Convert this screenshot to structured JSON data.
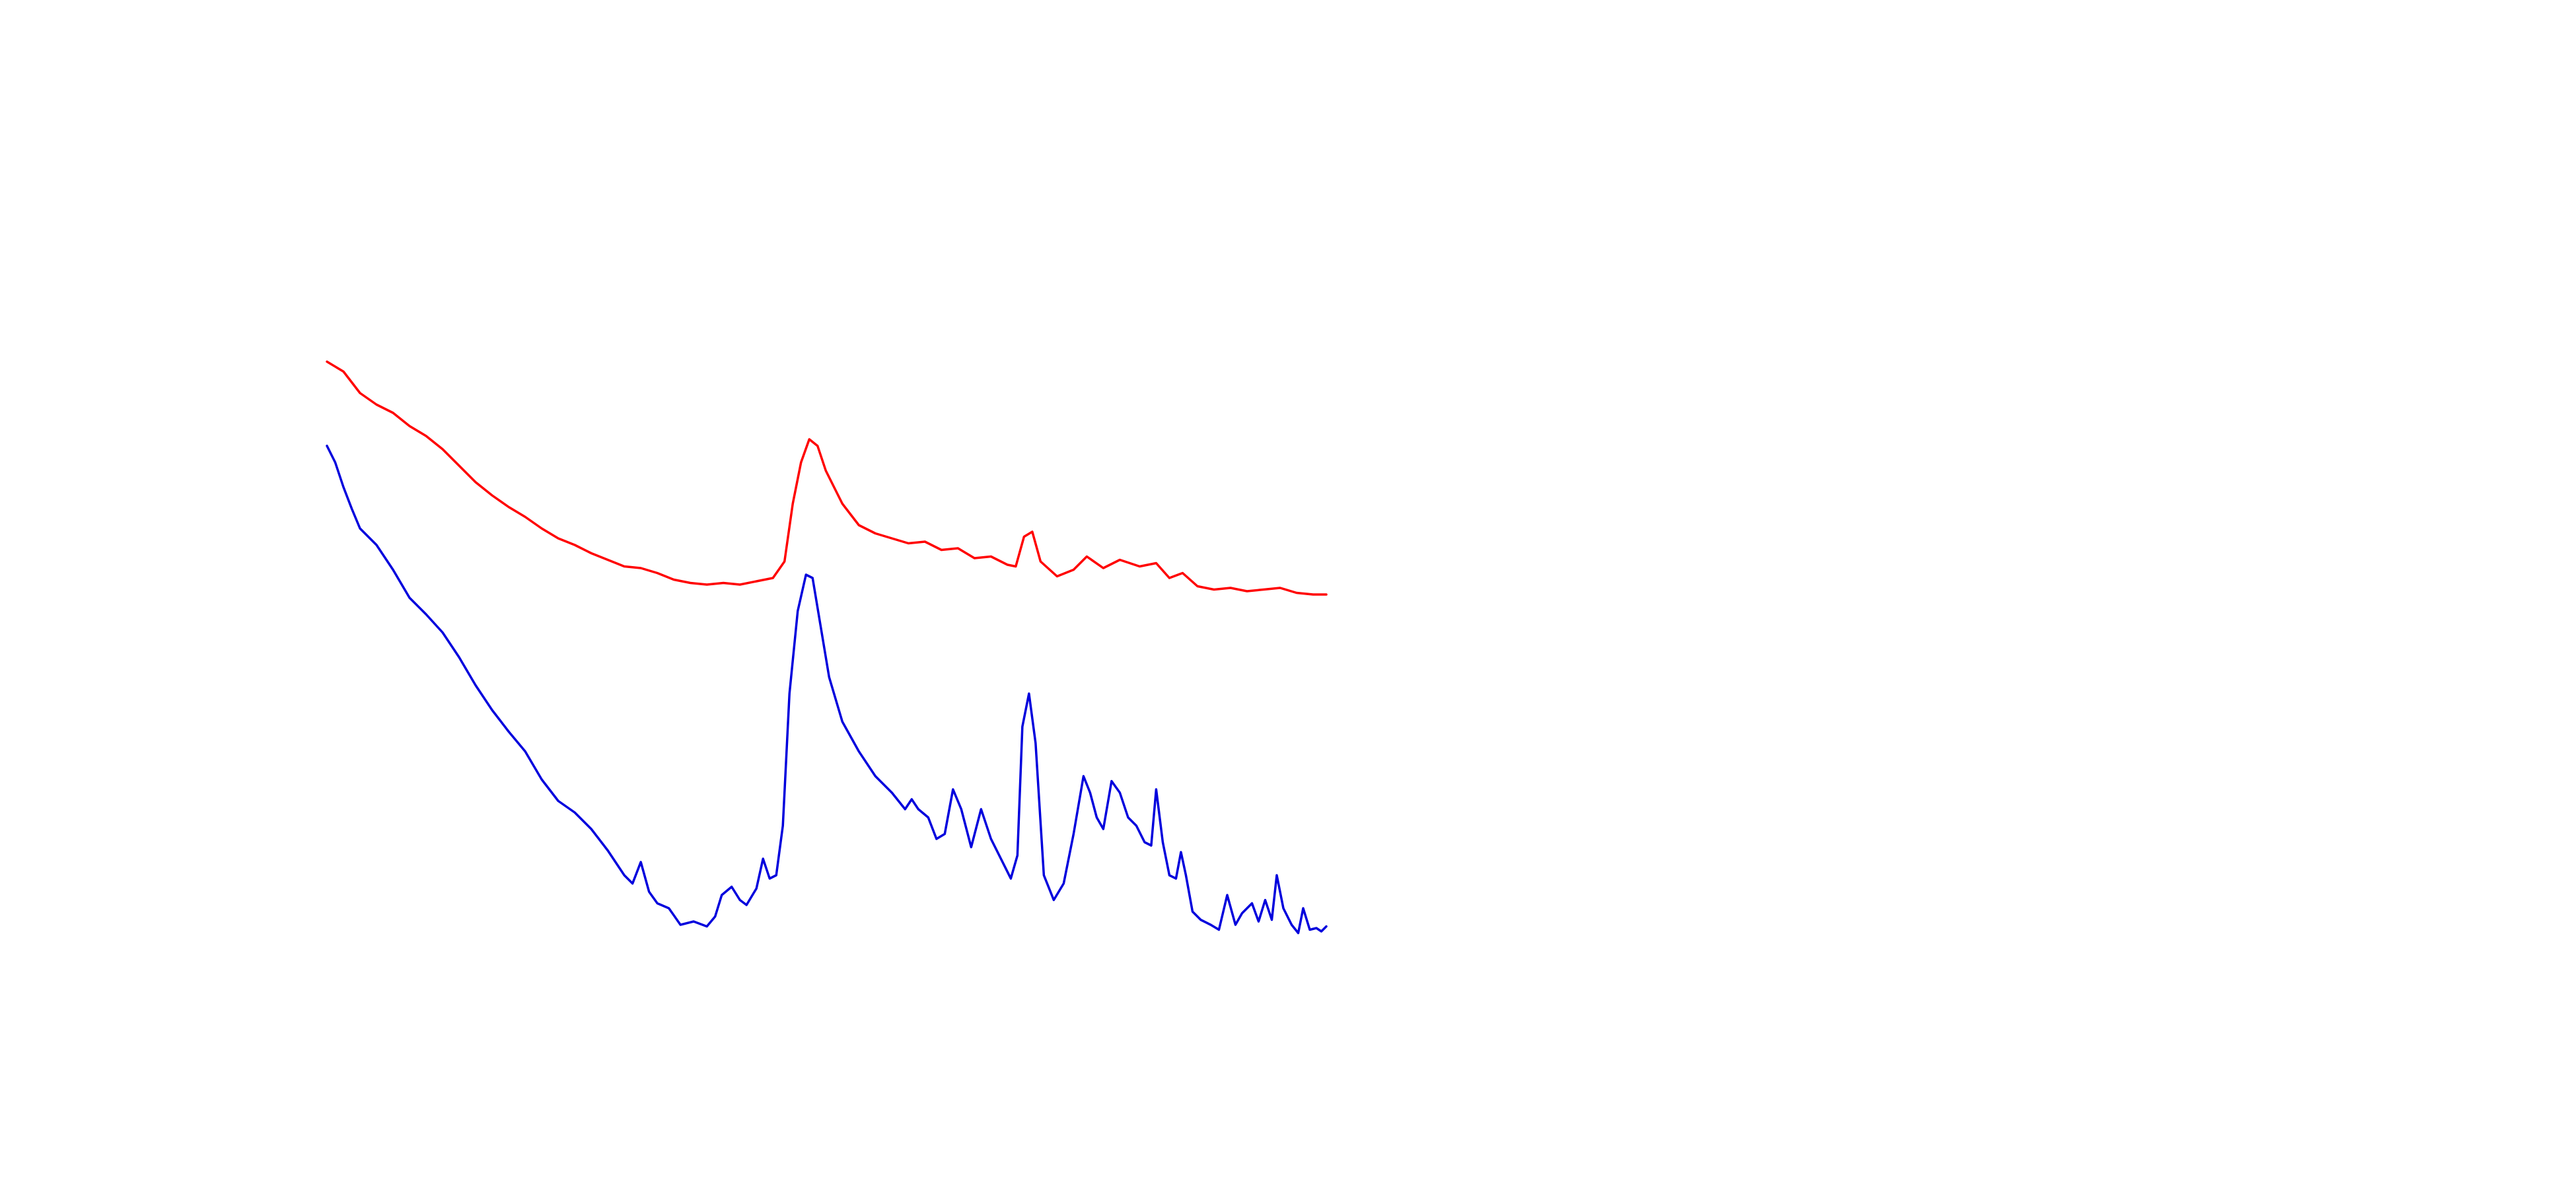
{
  "chart_data": {
    "type": "line",
    "xlim": [
      0,
      605
    ],
    "ylim": [
      0,
      380
    ],
    "series": [
      {
        "color": "#ff0000",
        "x": [
          0,
          10,
          20,
          30,
          40,
          50,
          60,
          70,
          80,
          90,
          100,
          110,
          120,
          130,
          140,
          150,
          160,
          170,
          180,
          190,
          200,
          210,
          220,
          230,
          240,
          250,
          260,
          270,
          277,
          282,
          287,
          292,
          297,
          302,
          312,
          322,
          332,
          342,
          352,
          362,
          372,
          382,
          392,
          402,
          412,
          417,
          422,
          427,
          432,
          442,
          452,
          460,
          470,
          480,
          492,
          502,
          510,
          518,
          527,
          537,
          547,
          557,
          567,
          577,
          587,
          597,
          605
        ],
        "values": [
          361,
          355,
          342,
          335,
          330,
          322,
          316,
          308,
          298,
          288,
          280,
          273,
          267,
          260,
          254,
          250,
          245,
          241,
          237,
          236,
          233,
          229,
          227,
          226,
          227,
          226,
          228,
          230,
          240,
          275,
          300,
          314,
          310,
          295,
          275,
          262,
          257,
          254,
          251,
          252,
          247,
          248,
          242,
          243,
          238,
          237,
          255,
          258,
          240,
          231,
          235,
          243,
          236,
          241,
          237,
          239,
          230,
          233,
          225,
          223,
          224,
          222,
          223,
          224,
          221,
          220,
          220
        ]
      },
      {
        "color": "#0000dd",
        "x": [
          0,
          5,
          10,
          15,
          20,
          30,
          40,
          50,
          60,
          70,
          80,
          90,
          100,
          110,
          120,
          130,
          140,
          150,
          160,
          170,
          180,
          185,
          190,
          195,
          200,
          207,
          214,
          222,
          230,
          235,
          239,
          245,
          250,
          254,
          260,
          264,
          268,
          272,
          276,
          280,
          285,
          290,
          294,
          299,
          304,
          312,
          322,
          332,
          342,
          350,
          354,
          358,
          364,
          369,
          374,
          379,
          384,
          390,
          396,
          402,
          408,
          414,
          418,
          421,
          425,
          429,
          434,
          440,
          446,
          452,
          458,
          462,
          466,
          470,
          475,
          480,
          485,
          490,
          495,
          499,
          502,
          506,
          510,
          514,
          517,
          520,
          524,
          529,
          535,
          540,
          545,
          550,
          554,
          560,
          564,
          568,
          572,
          575,
          579,
          584,
          588,
          591,
          595,
          599,
          602,
          605
        ],
        "values": [
          310,
          300,
          285,
          272,
          260,
          250,
          235,
          218,
          208,
          197,
          182,
          165,
          150,
          137,
          125,
          108,
          95,
          88,
          78,
          65,
          50,
          45,
          58,
          40,
          33,
          30,
          20,
          22,
          19,
          25,
          38,
          43,
          35,
          32,
          42,
          60,
          48,
          50,
          80,
          160,
          210,
          232,
          230,
          200,
          170,
          143,
          125,
          110,
          100,
          90,
          96,
          90,
          85,
          72,
          75,
          102,
          90,
          67,
          90,
          72,
          60,
          48,
          62,
          140,
          160,
          130,
          50,
          35,
          45,
          75,
          110,
          100,
          85,
          78,
          107,
          100,
          85,
          80,
          70,
          68,
          102,
          70,
          50,
          48,
          64,
          50,
          28,
          23,
          20,
          17,
          38,
          20,
          27,
          33,
          22,
          35,
          23,
          50,
          30,
          20,
          15,
          30,
          17,
          18,
          16,
          19
        ]
      }
    ]
  }
}
